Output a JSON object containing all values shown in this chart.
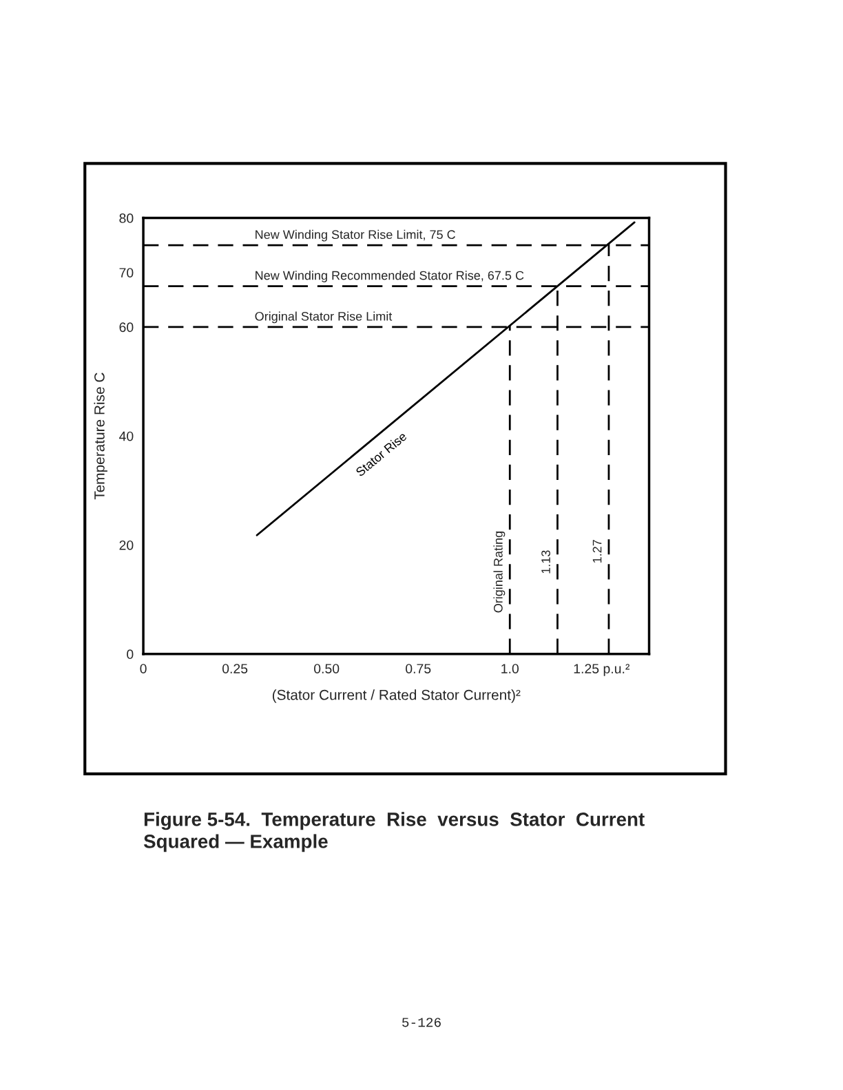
{
  "chart_data": {
    "type": "line",
    "title": "Figure 5-54.  Temperature  Rise  versus  Stator  Current\nSquared — Example",
    "xlabel": "(Stator Current / Rated Stator Current)²",
    "ylabel": "Temperature Rise C",
    "x": [
      0.31,
      1.34
    ],
    "series": [
      {
        "name": "Stator Rise",
        "color": "#000000",
        "values": [
          21.8,
          79.2
        ]
      }
    ],
    "xlim": [
      0,
      1.38
    ],
    "xticks": [
      0,
      0.25,
      {
        "value": 0.5,
        "label": "0.50"
      },
      0.75,
      {
        "value": 1.0,
        "label": "1.0"
      },
      {
        "value": 1.25,
        "label": "1.25 p.u.²"
      }
    ],
    "ylim": [
      0,
      80
    ],
    "yticks": [
      0,
      20,
      40,
      60,
      70,
      80
    ],
    "ref_lines": [
      {
        "axis": "y",
        "value": 75,
        "label": "New Winding Stator Rise Limit, 75 C",
        "line_style": "dashed"
      },
      {
        "axis": "y",
        "value": 67.5,
        "label": "New Winding Recommended Stator Rise, 67.5 C",
        "line_style": "dashed"
      },
      {
        "axis": "y",
        "value": 60,
        "label": "Original Stator Rise Limit",
        "line_style": "dashed"
      },
      {
        "axis": "x",
        "value": 1.0,
        "label": "Original Rating",
        "line_style": "dashed"
      },
      {
        "axis": "x",
        "value": 1.13,
        "label": "1.13",
        "line_style": "dashed"
      },
      {
        "axis": "x",
        "value": 1.27,
        "label": "1.27",
        "line_style": "dashed"
      }
    ],
    "annotations": [
      "5-126"
    ],
    "grid": false,
    "legend": false,
    "line_style": "solid",
    "marker": "none"
  }
}
